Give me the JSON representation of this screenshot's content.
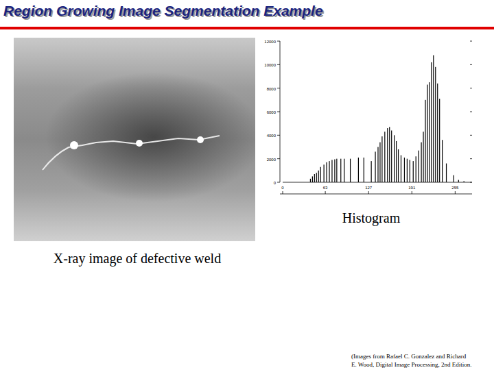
{
  "header": {
    "title": "Region Growing Image Segmentation Example"
  },
  "image_caption": "X-ray image of defective weld",
  "chart_caption": "Histogram",
  "citation": "(Images from Rafael C. Gonzalez and Richard E. Wood, Digital Image Processing, 2nd Edition.",
  "chart_data": {
    "type": "bar",
    "x": [
      41,
      44,
      47,
      50,
      53,
      56,
      61,
      65,
      69,
      73,
      77,
      80,
      86,
      91,
      100,
      112,
      120,
      131,
      137,
      141,
      144,
      147,
      151,
      155,
      158,
      161,
      165,
      168,
      171,
      175,
      180,
      184,
      188,
      193,
      197,
      201,
      205,
      208,
      211,
      214,
      217,
      220,
      223,
      226,
      229,
      232,
      236,
      242,
      253,
      260,
      268
    ],
    "values": [
      300,
      500,
      700,
      800,
      1000,
      1300,
      1500,
      1700,
      1800,
      1900,
      1950,
      2000,
      2000,
      2000,
      2000,
      2100,
      2100,
      1800,
      2600,
      3000,
      3400,
      3900,
      4300,
      4600,
      4700,
      4400,
      4000,
      3500,
      2800,
      2300,
      2100,
      2000,
      1900,
      1800,
      2200,
      2700,
      3400,
      4300,
      7000,
      8300,
      8500,
      10200,
      10800,
      9800,
      8400,
      7100,
      3600,
      1600,
      600,
      200,
      100
    ],
    "color": "#000000",
    "xlim": [
      0,
      280
    ],
    "xticks": [
      0,
      63,
      127,
      191,
      255
    ],
    "ylim": [
      0,
      12000
    ],
    "yticks": [
      0,
      2000,
      4000,
      6000,
      8000,
      10000,
      12000
    ],
    "grid": false
  }
}
